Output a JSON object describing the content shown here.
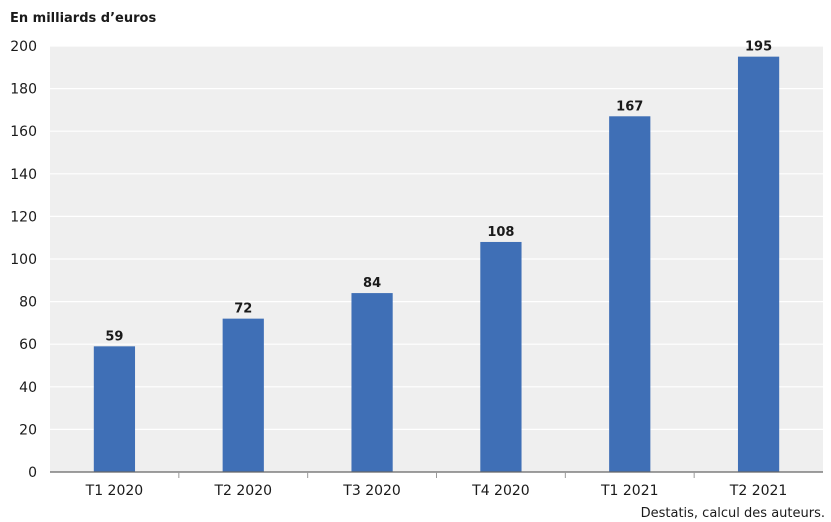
{
  "chart_data": {
    "type": "bar",
    "ylabel": "En milliards d’euros",
    "categories": [
      "T1 2020",
      "T2 2020",
      "T3 2020",
      "T4 2020",
      "T1 2021",
      "T2 2021"
    ],
    "values": [
      59,
      72,
      84,
      108,
      167,
      195
    ],
    "ylim": [
      0,
      200
    ],
    "yticks": [
      0,
      20,
      40,
      60,
      80,
      100,
      120,
      140,
      160,
      180,
      200
    ],
    "grid": true,
    "data_labels": true,
    "bar_color": "#3F6FB6",
    "plot_background": "#EFEFEF",
    "source": "Destatis, calcul des auteurs."
  }
}
